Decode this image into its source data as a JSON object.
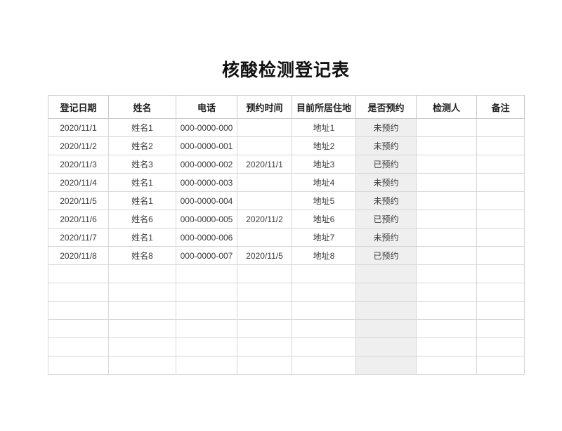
{
  "page": {
    "title": "核酸检测登记表"
  },
  "table": {
    "columns": [
      {
        "key": "registration-date",
        "label": "登记日期"
      },
      {
        "key": "name",
        "label": "姓名"
      },
      {
        "key": "phone",
        "label": "电话"
      },
      {
        "key": "appointment-time",
        "label": "预约时间"
      },
      {
        "key": "current-residence",
        "label": "目前所居住地"
      },
      {
        "key": "booked-status",
        "label": "是否预约"
      },
      {
        "key": "tester",
        "label": "检测人"
      },
      {
        "key": "remarks",
        "label": "备注"
      }
    ],
    "shaded_column_index": 5,
    "rows": [
      [
        "2020/11/1",
        "姓名1",
        "000-0000-000",
        "",
        "地址1",
        "未预约",
        "",
        ""
      ],
      [
        "2020/11/2",
        "姓名2",
        "000-0000-001",
        "",
        "地址2",
        "未预约",
        "",
        ""
      ],
      [
        "2020/11/3",
        "姓名3",
        "000-0000-002",
        "2020/11/1",
        "地址3",
        "已预约",
        "",
        ""
      ],
      [
        "2020/11/4",
        "姓名1",
        "000-0000-003",
        "",
        "地址4",
        "未预约",
        "",
        ""
      ],
      [
        "2020/11/5",
        "姓名1",
        "000-0000-004",
        "",
        "地址5",
        "未预约",
        "",
        ""
      ],
      [
        "2020/11/6",
        "姓名6",
        "000-0000-005",
        "2020/11/2",
        "地址6",
        "已预约",
        "",
        ""
      ],
      [
        "2020/11/7",
        "姓名1",
        "000-0000-006",
        "",
        "地址7",
        "未预约",
        "",
        ""
      ],
      [
        "2020/11/8",
        "姓名8",
        "000-0000-007",
        "2020/11/5",
        "地址8",
        "已预约",
        "",
        ""
      ]
    ],
    "empty_row_count": 6
  },
  "colors": {
    "shaded_cell": "#efefef",
    "grid_border": "#d7d7d7",
    "outer_border": "#c3c3c3",
    "title_text": "#111111",
    "header_text": "#1f1f1f",
    "cell_text": "#3a3a3a"
  }
}
